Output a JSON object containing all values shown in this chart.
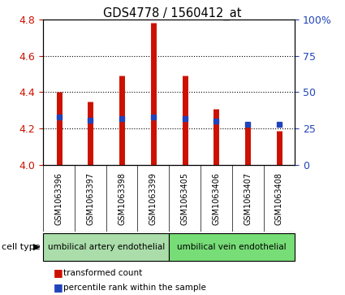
{
  "title": "GDS4778 / 1560412_at",
  "samples": [
    "GSM1063396",
    "GSM1063397",
    "GSM1063398",
    "GSM1063399",
    "GSM1063405",
    "GSM1063406",
    "GSM1063407",
    "GSM1063408"
  ],
  "transformed_counts": [
    4.4,
    4.35,
    4.49,
    4.78,
    4.49,
    4.31,
    4.22,
    4.19
  ],
  "percentile_ranks": [
    33,
    31,
    32,
    33,
    32,
    30,
    28,
    28
  ],
  "ylim_left": [
    4.0,
    4.8
  ],
  "ylim_right": [
    0,
    100
  ],
  "yticks_left": [
    4.0,
    4.2,
    4.4,
    4.6,
    4.8
  ],
  "yticks_right": [
    0,
    25,
    50,
    75,
    100
  ],
  "bar_color": "#CC1100",
  "dot_color": "#2244BB",
  "cell_type_groups": [
    {
      "label": "umbilical artery endothelial",
      "indices": [
        0,
        1,
        2,
        3
      ],
      "color": "#AADDAA"
    },
    {
      "label": "umbilical vein endothelial",
      "indices": [
        4,
        5,
        6,
        7
      ],
      "color": "#77DD77"
    }
  ],
  "cell_type_label": "cell type",
  "tick_label_color_left": "#CC1100",
  "tick_label_color_right": "#2244BB",
  "bar_bottom": 4.0,
  "xtick_bg": "#CCCCCC",
  "legend_bar_label": "transformed count",
  "legend_dot_label": "percentile rank within the sample"
}
